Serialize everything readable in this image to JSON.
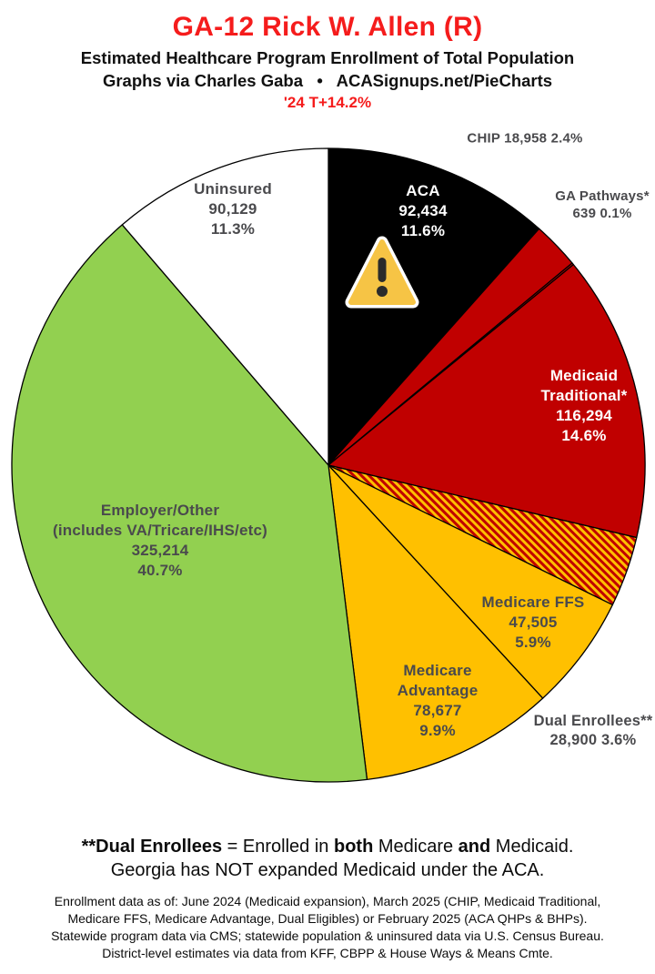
{
  "header": {
    "title": "GA-12 Rick W. Allen (R)",
    "subtitle": "Estimated Healthcare Program Enrollment of Total Population",
    "credit": "Graphs via Charles Gaba   •   ACASignups.net/PieCharts",
    "trend_note": "'24 T+14.2%"
  },
  "colors": {
    "title_red": "#f51c1c",
    "pie_red": "#C00000",
    "pie_yellow": "#FFC000",
    "pie_green": "#92D050",
    "pie_black": "#000000",
    "pie_white": "#FFFFFF",
    "label_dark": "#4a4a4d",
    "label_light": "#FFFFFF",
    "hatch_base": "#FFC000",
    "hatch_stripe": "#C00000",
    "warning_fill": "#F6C445",
    "warning_mark": "#2b2b2b"
  },
  "chart_data": {
    "type": "pie",
    "title": "Estimated Healthcare Program Enrollment of Total Population",
    "start_angle_deg": 0,
    "direction": "clockwise",
    "segments": [
      {
        "slug": "aca",
        "name": "ACA",
        "value": 92434,
        "value_text": "92,434",
        "pct": 11.6,
        "pct_text": "11.6%",
        "color": "#000000",
        "label_placement": "inside",
        "label_lines": [
          "ACA",
          "92,434",
          "11.6%"
        ]
      },
      {
        "slug": "chip",
        "name": "CHIP",
        "value": 18958,
        "value_text": "18,958",
        "pct": 2.4,
        "pct_text": "2.4%",
        "color": "#C00000",
        "label_placement": "outside",
        "label_lines": [
          "CHIP 18,958 2.4%"
        ]
      },
      {
        "slug": "ga-pathways",
        "name": "GA Pathways*",
        "value": 639,
        "value_text": "639",
        "pct": 0.1,
        "pct_text": "0.1%",
        "color": "#C00000",
        "label_placement": "outside",
        "label_lines": [
          "GA Pathways*",
          "639 0.1%"
        ]
      },
      {
        "slug": "medicaid-traditional",
        "name": "Medicaid Traditional*",
        "value": 116294,
        "value_text": "116,294",
        "pct": 14.6,
        "pct_text": "14.6%",
        "color": "#C00000",
        "label_placement": "inside",
        "label_lines": [
          "Medicaid",
          "Traditional*",
          "116,294",
          "14.6%"
        ]
      },
      {
        "slug": "dual-enrollees",
        "name": "Dual Enrollees**",
        "value": 28900,
        "value_text": "28,900",
        "pct": 3.6,
        "pct_text": "3.6%",
        "color": "hatch",
        "label_placement": "outside",
        "label_lines": [
          "Dual Enrollees**",
          "28,900 3.6%"
        ]
      },
      {
        "slug": "medicare-ffs",
        "name": "Medicare FFS",
        "value": 47505,
        "value_text": "47,505",
        "pct": 5.9,
        "pct_text": "5.9%",
        "color": "#FFC000",
        "label_placement": "inside",
        "label_lines": [
          "Medicare FFS",
          "47,505",
          "5.9%"
        ]
      },
      {
        "slug": "medicare-advantage",
        "name": "Medicare Advantage",
        "value": 78677,
        "value_text": "78,677",
        "pct": 9.9,
        "pct_text": "9.9%",
        "color": "#FFC000",
        "label_placement": "inside",
        "label_lines": [
          "Medicare",
          "Advantage",
          "78,677",
          "9.9%"
        ]
      },
      {
        "slug": "employer-other",
        "name": "Employer/Other",
        "value": 325214,
        "value_text": "325,214",
        "pct": 40.7,
        "pct_text": "40.7%",
        "color": "#92D050",
        "label_placement": "inside",
        "label_lines": [
          "Employer/Other",
          "(includes VA/Tricare/IHS/etc)",
          "325,214",
          "40.7%"
        ]
      },
      {
        "slug": "uninsured",
        "name": "Uninsured",
        "value": 90129,
        "value_text": "90,129",
        "pct": 11.3,
        "pct_text": "11.3%",
        "color": "#FFFFFF",
        "label_placement": "inside",
        "label_lines": [
          "Uninsured",
          "90,129",
          "11.3%"
        ]
      }
    ]
  },
  "footnotes": {
    "line1_parts": {
      "p0": "**Dual Enrollees",
      "p1": " = Enrolled in ",
      "p2": "both",
      "p3": " Medicare ",
      "p4": "and",
      "p5": " Medicaid."
    },
    "line2": "Georgia has NOT expanded Medicaid under the ACA.",
    "fine_print": "Enrollment data as of: June 2024 (Medicaid expansion), March 2025 (CHIP, Medicaid Traditional,\nMedicare FFS, Medicare Advantage, Dual Eligibles) or February 2025 (ACA QHPs & BHPs).\nStatewide program data via CMS; statewide population & uninsured data via U.S. Census Bureau.\nDistrict-level estimates via data from KFF, CBPP & House Ways & Means Cmte."
  }
}
